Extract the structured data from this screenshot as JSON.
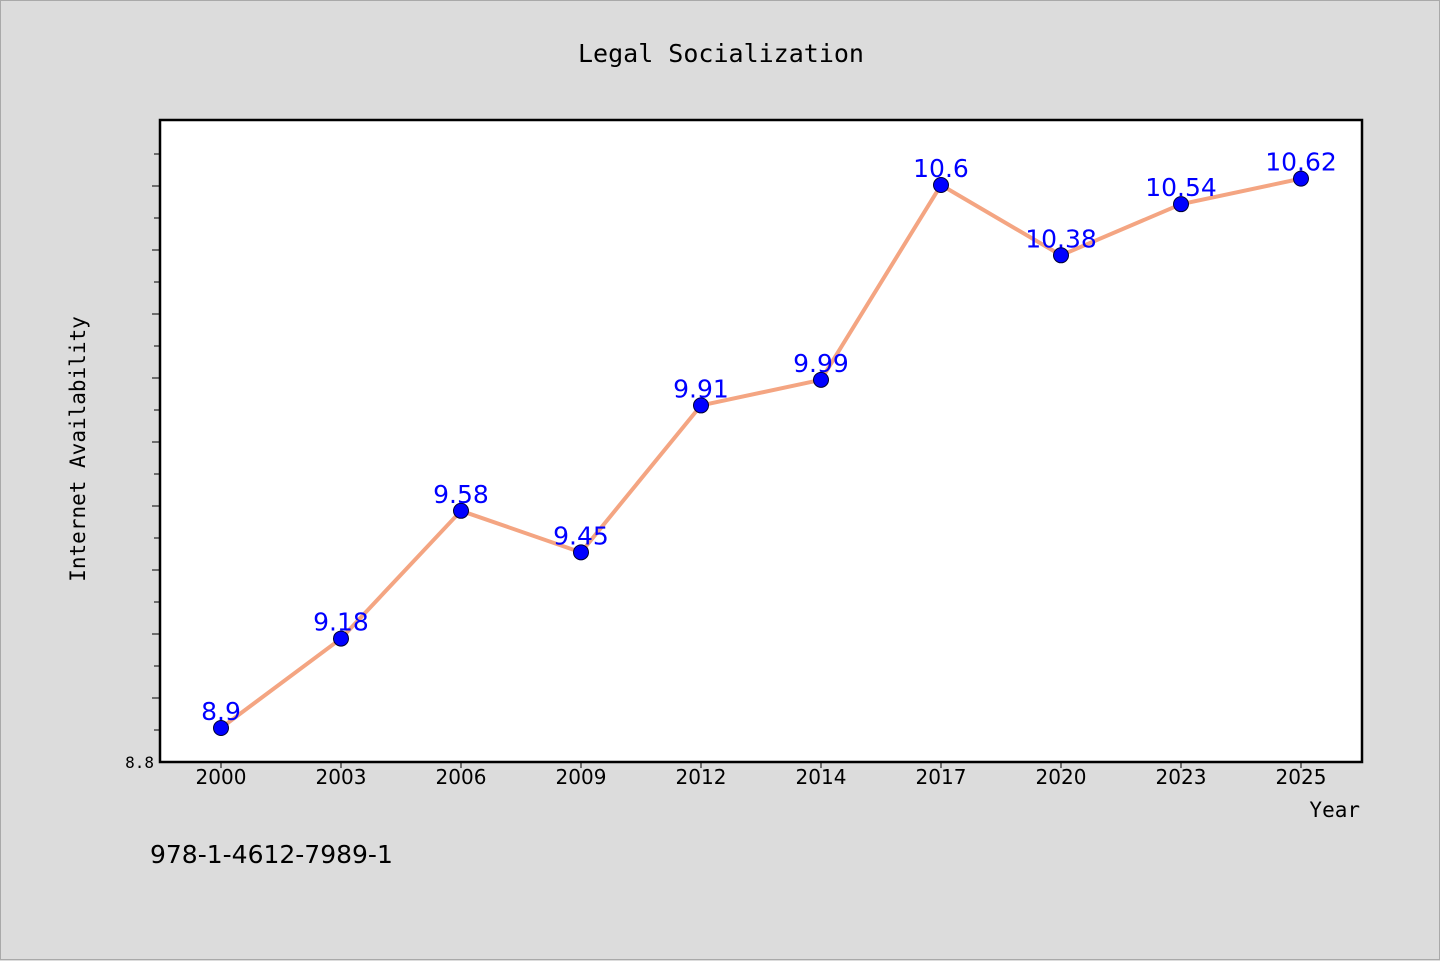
{
  "chart_data": {
    "type": "line",
    "title": "Legal Socialization",
    "xlabel": "Year",
    "ylabel": "Internet Availability",
    "categories": [
      "2000",
      "2003",
      "2006",
      "2009",
      "2012",
      "2014",
      "2017",
      "2020",
      "2023",
      "2025"
    ],
    "series": [
      {
        "values": [
          8.9,
          9.18,
          9.58,
          9.45,
          9.91,
          9.99,
          10.6,
          10.38,
          10.54,
          10.62
        ]
      }
    ],
    "data_labels": [
      "8.9",
      "9.18",
      "9.58",
      "9.45",
      "9.91",
      "9.99",
      "10.6",
      "10.38",
      "10.54",
      "10.62"
    ],
    "ylim": [
      8.8,
      10.8
    ],
    "y_tick_label": "8.8",
    "grid": false,
    "legend": "none",
    "line_color": "#f4a582",
    "marker_color": "#0000ff",
    "label_color": "#0000ff"
  },
  "footer": {
    "isbn": "978-1-4612-7989-1"
  }
}
